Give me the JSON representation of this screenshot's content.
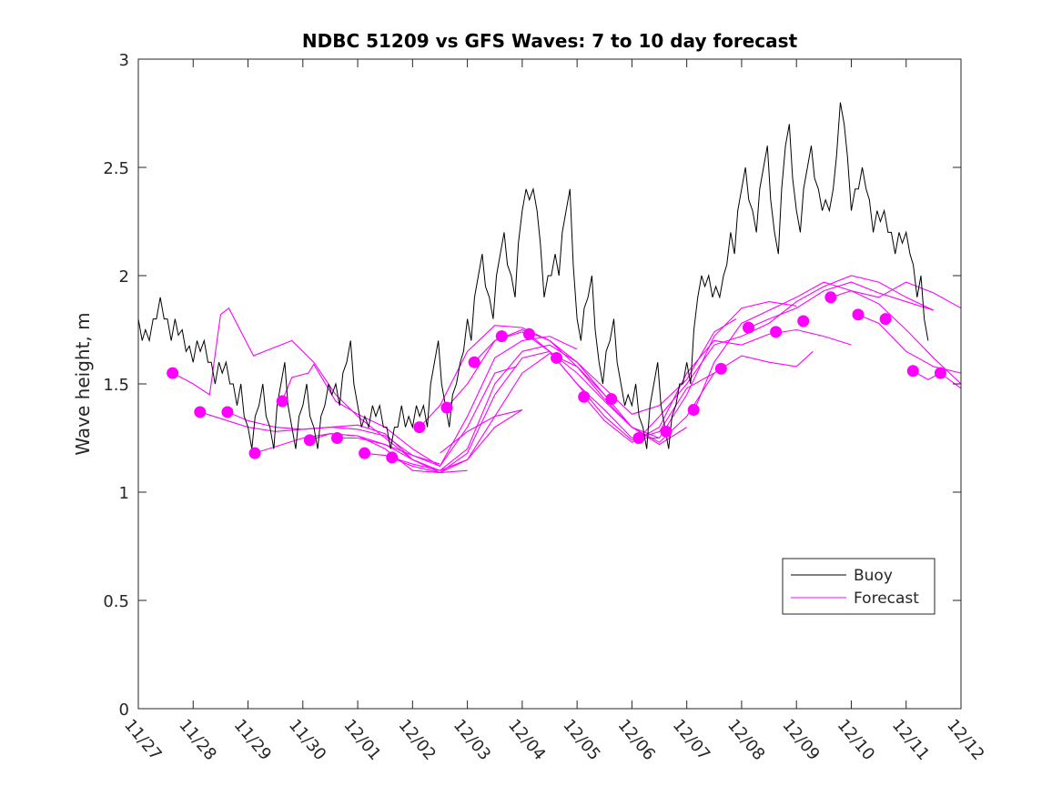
{
  "chart_data": {
    "type": "line",
    "title": "NDBC 51209 vs GFS Waves: 7 to 10 day forecast",
    "xlabel": "",
    "ylabel": "Wave height, m",
    "ylim": [
      0,
      3
    ],
    "yticks": [
      0,
      0.5,
      1,
      1.5,
      2,
      2.5,
      3
    ],
    "ytick_labels": [
      "0",
      "0.5",
      "1",
      "1.5",
      "2",
      "2.5",
      "3"
    ],
    "xlim_days": [
      0,
      15
    ],
    "xtick_labels": [
      "11/27",
      "11/28",
      "11/29",
      "11/30",
      "12/01",
      "12/02",
      "12/03",
      "12/04",
      "12/05",
      "12/06",
      "12/07",
      "12/08",
      "12/09",
      "12/10",
      "12/11",
      "12/12"
    ],
    "legend": {
      "placement": "bottom-right",
      "entries": [
        "Buoy",
        "Forecast"
      ]
    },
    "colors": {
      "buoy": "#000000",
      "forecast": "#ff00ff"
    },
    "buoy": {
      "x_start_day": 0,
      "x_step_day": 0.2,
      "values": [
        1.8,
        1.7,
        1.9,
        1.7,
        1.75,
        1.6,
        1.7,
        1.5,
        1.6,
        1.4,
        1.3,
        1.4,
        1.3,
        1.5,
        1.3,
        1.4,
        1.3,
        1.4,
        1.5,
        1.6,
        1.4,
        1.3,
        1.4,
        1.2,
        1.4,
        1.3,
        1.4,
        1.6,
        1.4,
        1.5,
        1.8,
        2.0,
        1.9,
        2.1,
        2.0,
        2.3,
        2.4,
        1.9,
        2.1,
        2.3,
        1.8,
        1.9,
        1.6,
        1.7,
        1.5,
        1.4,
        1.3,
        1.5,
        1.3,
        1.4,
        1.6,
        1.9,
        2.0,
        1.9,
        2.2,
        2.4,
        2.3,
        2.5,
        2.2,
        2.6,
        2.3,
        2.5,
        2.4,
        2.3,
        2.8,
        2.3,
        2.5,
        2.2,
        2.3,
        2.1,
        2.2,
        1.9,
        1.7
      ]
    },
    "forecast_lines": [
      [
        [
          0.63,
          1.55
        ],
        [
          1.0,
          1.5
        ],
        [
          1.3,
          1.45
        ],
        [
          1.5,
          1.82
        ],
        [
          1.65,
          1.85
        ],
        [
          2.1,
          1.63
        ],
        [
          2.5,
          1.67
        ],
        [
          2.8,
          1.7
        ],
        [
          3.2,
          1.6
        ],
        [
          3.6,
          1.45
        ],
        [
          4.0,
          1.35
        ],
        [
          4.5,
          1.25
        ],
        [
          5.0,
          1.15
        ]
      ],
      [
        [
          1.13,
          1.37
        ],
        [
          1.5,
          1.34
        ],
        [
          2.0,
          1.3
        ],
        [
          2.5,
          1.28
        ],
        [
          3.0,
          1.29
        ],
        [
          3.5,
          1.3
        ],
        [
          4.0,
          1.29
        ],
        [
          4.5,
          1.26
        ],
        [
          5.0,
          1.17
        ],
        [
          5.5,
          1.13
        ]
      ],
      [
        [
          1.63,
          1.37
        ],
        [
          2.0,
          1.33
        ],
        [
          2.5,
          1.3
        ],
        [
          3.0,
          1.29
        ],
        [
          3.5,
          1.3
        ],
        [
          4.0,
          1.31
        ],
        [
          4.5,
          1.27
        ],
        [
          5.0,
          1.15
        ],
        [
          5.5,
          1.09
        ],
        [
          6.0,
          1.1
        ]
      ],
      [
        [
          2.12,
          1.18
        ],
        [
          2.5,
          1.21
        ],
        [
          3.0,
          1.25
        ],
        [
          3.5,
          1.27
        ],
        [
          4.0,
          1.26
        ],
        [
          4.5,
          1.2
        ],
        [
          5.0,
          1.1
        ],
        [
          5.5,
          1.09
        ],
        [
          6.0,
          1.15
        ],
        [
          6.5,
          1.3
        ],
        [
          7.0,
          1.38
        ]
      ],
      [
        [
          2.62,
          1.42
        ],
        [
          2.8,
          1.53
        ],
        [
          3.1,
          1.55
        ],
        [
          3.2,
          1.59
        ],
        [
          3.6,
          1.42
        ],
        [
          4.0,
          1.36
        ],
        [
          4.5,
          1.3
        ],
        [
          5.0,
          1.2
        ],
        [
          5.5,
          1.12
        ],
        [
          6.0,
          1.3
        ],
        [
          6.5,
          1.55
        ],
        [
          6.9,
          1.58
        ]
      ],
      [
        [
          3.12,
          1.24
        ],
        [
          3.5,
          1.27
        ],
        [
          4.0,
          1.26
        ],
        [
          4.5,
          1.22
        ],
        [
          5.0,
          1.17
        ],
        [
          5.5,
          1.12
        ],
        [
          6.0,
          1.35
        ],
        [
          6.5,
          1.62
        ],
        [
          7.0,
          1.7
        ],
        [
          7.5,
          1.72
        ],
        [
          8.0,
          1.66
        ]
      ],
      [
        [
          3.62,
          1.25
        ],
        [
          4.0,
          1.25
        ],
        [
          4.5,
          1.22
        ],
        [
          5.0,
          1.15
        ],
        [
          5.5,
          1.1
        ],
        [
          6.0,
          1.2
        ],
        [
          6.5,
          1.5
        ],
        [
          7.0,
          1.65
        ],
        [
          7.5,
          1.68
        ],
        [
          8.0,
          1.6
        ],
        [
          8.5,
          1.45
        ]
      ],
      [
        [
          4.11,
          1.18
        ],
        [
          4.5,
          1.17
        ],
        [
          5.0,
          1.12
        ],
        [
          5.5,
          1.09
        ],
        [
          6.0,
          1.18
        ],
        [
          6.5,
          1.45
        ],
        [
          7.0,
          1.62
        ],
        [
          7.5,
          1.65
        ],
        [
          8.0,
          1.55
        ],
        [
          8.5,
          1.42
        ],
        [
          9.0,
          1.3
        ],
        [
          9.5,
          1.25
        ]
      ],
      [
        [
          4.63,
          1.16
        ],
        [
          5.0,
          1.13
        ],
        [
          5.5,
          1.1
        ],
        [
          6.0,
          1.15
        ],
        [
          6.5,
          1.35
        ],
        [
          7.0,
          1.55
        ],
        [
          7.5,
          1.64
        ],
        [
          8.0,
          1.58
        ],
        [
          8.5,
          1.45
        ],
        [
          9.0,
          1.3
        ],
        [
          9.5,
          1.22
        ],
        [
          10.0,
          1.3
        ]
      ],
      [
        [
          5.13,
          1.3
        ],
        [
          5.5,
          1.4
        ],
        [
          6.0,
          1.65
        ],
        [
          6.5,
          1.77
        ],
        [
          7.0,
          1.76
        ],
        [
          7.5,
          1.7
        ],
        [
          8.0,
          1.58
        ],
        [
          8.5,
          1.43
        ],
        [
          9.0,
          1.3
        ],
        [
          9.5,
          1.23
        ],
        [
          10.0,
          1.35
        ],
        [
          10.5,
          1.55
        ]
      ],
      [
        [
          5.5,
          1.18
        ],
        [
          6.0,
          1.28
        ],
        [
          6.5,
          1.35
        ],
        [
          7.0,
          1.38
        ]
      ],
      [
        [
          5.62,
          1.39
        ],
        [
          6.0,
          1.5
        ],
        [
          6.5,
          1.7
        ],
        [
          7.0,
          1.75
        ],
        [
          7.5,
          1.7
        ],
        [
          8.0,
          1.6
        ],
        [
          8.5,
          1.48
        ],
        [
          9.0,
          1.36
        ],
        [
          9.5,
          1.4
        ],
        [
          10.0,
          1.52
        ],
        [
          10.5,
          1.74
        ],
        [
          10.9,
          1.8
        ]
      ],
      [
        [
          6.12,
          1.6
        ],
        [
          6.5,
          1.7
        ],
        [
          7.0,
          1.74
        ],
        [
          7.5,
          1.65
        ],
        [
          8.0,
          1.5
        ],
        [
          8.5,
          1.38
        ],
        [
          9.0,
          1.25
        ],
        [
          9.5,
          1.25
        ],
        [
          10.0,
          1.45
        ],
        [
          10.5,
          1.72
        ],
        [
          11.0,
          1.85
        ],
        [
          11.5,
          1.88
        ],
        [
          12.0,
          1.86
        ]
      ],
      [
        [
          7.12,
          1.73
        ],
        [
          7.5,
          1.65
        ],
        [
          8.0,
          1.5
        ],
        [
          8.5,
          1.35
        ],
        [
          9.0,
          1.24
        ],
        [
          9.5,
          1.28
        ],
        [
          10.0,
          1.48
        ],
        [
          10.5,
          1.55
        ],
        [
          11.0,
          1.63
        ],
        [
          11.5,
          1.6
        ],
        [
          12.0,
          1.58
        ],
        [
          12.3,
          1.65
        ]
      ],
      [
        [
          8.13,
          1.44
        ],
        [
          8.5,
          1.33
        ],
        [
          9.0,
          1.23
        ],
        [
          9.5,
          1.3
        ],
        [
          10.0,
          1.55
        ],
        [
          10.5,
          1.7
        ],
        [
          11.0,
          1.68
        ],
        [
          11.5,
          1.73
        ],
        [
          12.0,
          1.75
        ],
        [
          12.5,
          1.72
        ],
        [
          13.0,
          1.68
        ]
      ],
      [
        [
          9.13,
          1.25
        ],
        [
          9.5,
          1.35
        ],
        [
          10.0,
          1.5
        ],
        [
          10.5,
          1.68
        ],
        [
          11.0,
          1.72
        ],
        [
          11.5,
          1.78
        ],
        [
          12.0,
          1.88
        ],
        [
          12.5,
          1.95
        ],
        [
          13.0,
          2.0
        ],
        [
          13.5,
          1.97
        ],
        [
          14.0,
          1.9
        ],
        [
          14.5,
          1.84
        ]
      ],
      [
        [
          10.14,
          1.38
        ],
        [
          10.5,
          1.6
        ],
        [
          11.0,
          1.78
        ],
        [
          11.5,
          1.84
        ],
        [
          12.0,
          1.9
        ],
        [
          12.5,
          1.97
        ],
        [
          13.0,
          1.93
        ],
        [
          13.5,
          1.87
        ],
        [
          14.0,
          1.75
        ],
        [
          14.5,
          1.62
        ],
        [
          15.0,
          1.5
        ]
      ],
      [
        [
          11.13,
          1.76
        ],
        [
          11.5,
          1.8
        ],
        [
          12.0,
          1.85
        ],
        [
          12.5,
          1.93
        ],
        [
          13.0,
          1.97
        ],
        [
          13.5,
          1.92
        ],
        [
          14.0,
          1.88
        ],
        [
          14.5,
          1.84
        ]
      ],
      [
        [
          12.63,
          1.9
        ],
        [
          13.0,
          1.93
        ],
        [
          13.5,
          1.9
        ],
        [
          14.0,
          1.97
        ],
        [
          14.5,
          1.92
        ],
        [
          15.0,
          1.85
        ]
      ],
      [
        [
          13.12,
          1.82
        ],
        [
          13.5,
          1.78
        ],
        [
          14.0,
          1.65
        ],
        [
          14.5,
          1.58
        ],
        [
          15.0,
          1.55
        ]
      ],
      [
        [
          14.12,
          1.56
        ],
        [
          14.4,
          1.52
        ],
        [
          14.62,
          1.55
        ],
        [
          15.0,
          1.48
        ]
      ]
    ],
    "forecast_points": {
      "x_start_day": 0.625,
      "x_step_day": 0.5,
      "values": [
        1.55,
        1.37,
        1.37,
        1.18,
        1.42,
        1.24,
        1.25,
        1.18,
        1.16,
        1.3,
        1.39,
        1.6,
        1.72,
        1.73,
        1.62,
        1.44,
        1.43,
        1.25,
        1.28,
        1.38,
        1.57,
        1.76,
        1.74,
        1.79,
        1.9,
        1.82,
        1.8,
        1.56,
        1.55
      ]
    }
  }
}
